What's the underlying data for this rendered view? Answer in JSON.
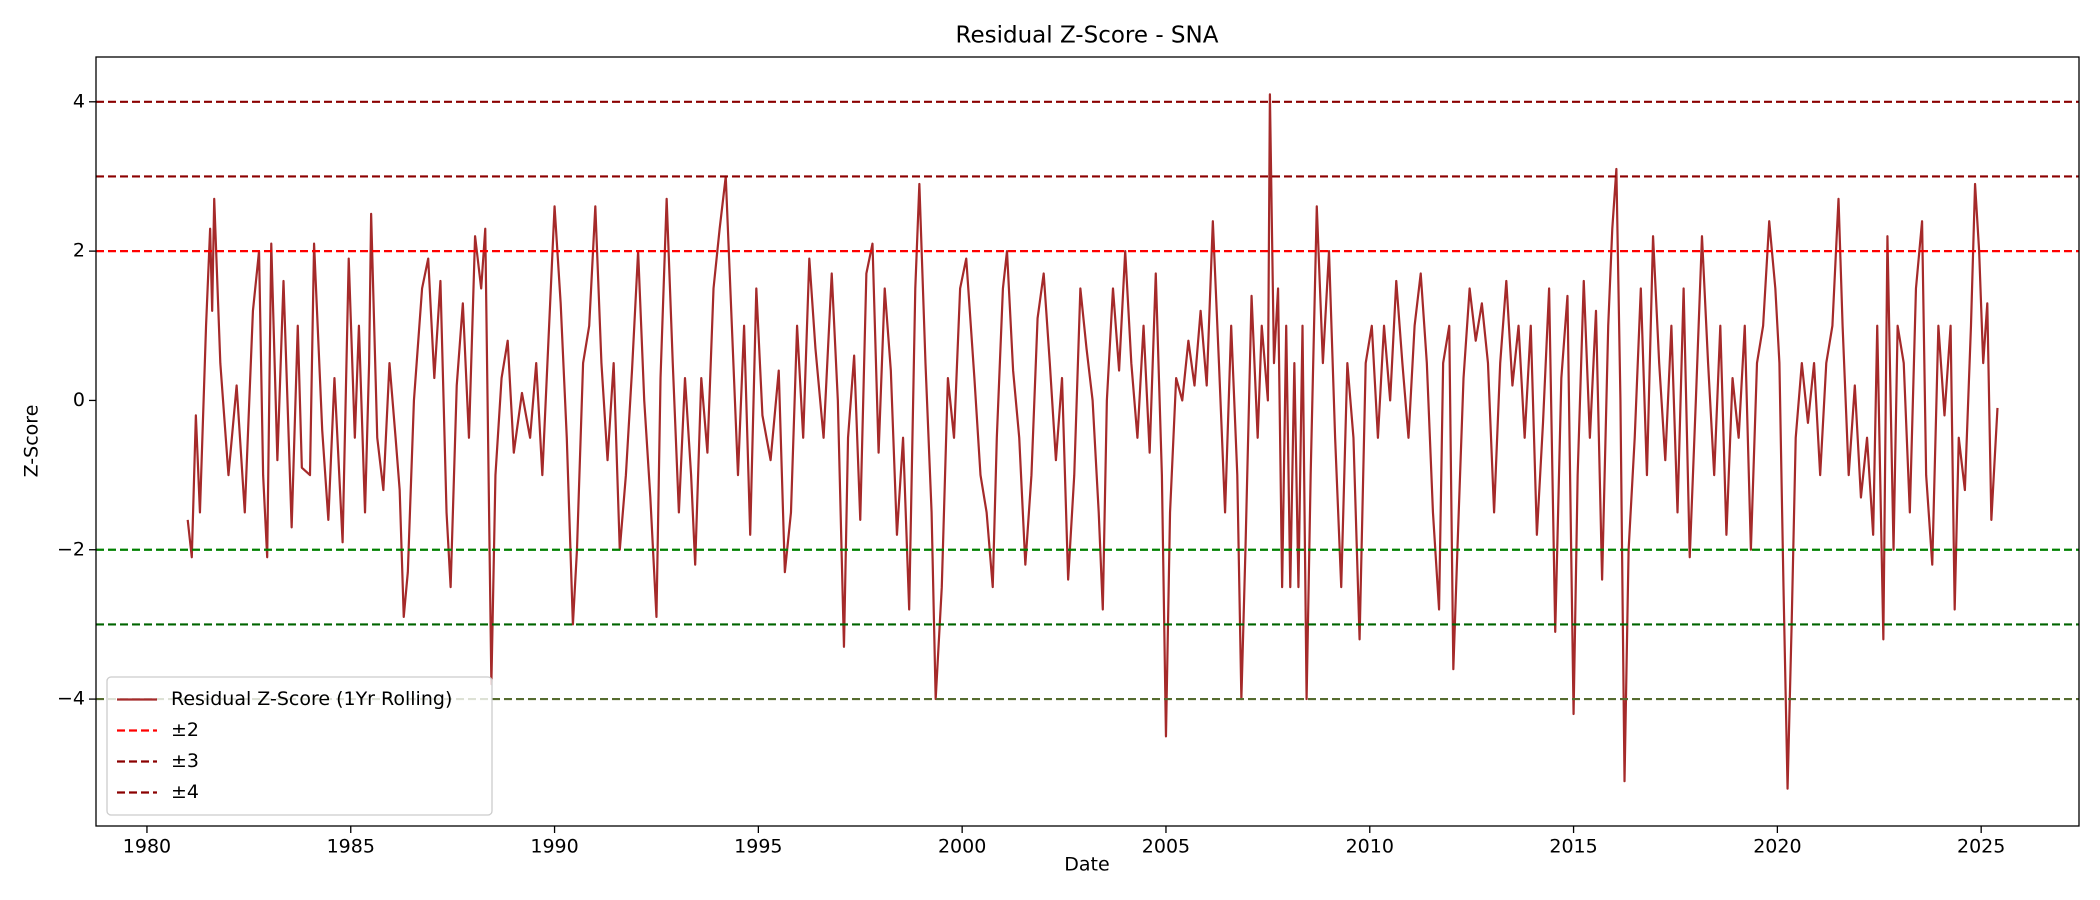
{
  "chart_data": {
    "type": "line",
    "title": "Residual Z-Score - SNA",
    "xlabel": "Date",
    "ylabel": "Z-Score",
    "xlim": [
      1978.75,
      2027.4
    ],
    "xticks": [
      1980,
      1985,
      1990,
      1995,
      2000,
      2005,
      2010,
      2015,
      2020,
      2025
    ],
    "ylim": [
      -5.7,
      4.6
    ],
    "yticks": [
      {
        "value": -4,
        "label": "−4"
      },
      {
        "value": -2,
        "label": "−2"
      },
      0,
      2,
      4
    ],
    "legend": "lower left",
    "x": [
      1981.0,
      1981.1,
      1981.2,
      1981.3,
      1981.45,
      1981.55,
      1981.6,
      1981.65,
      1981.8,
      1982.0,
      1982.2,
      1982.4,
      1982.6,
      1982.75,
      1982.85,
      1982.95,
      1983.05,
      1983.2,
      1983.35,
      1983.55,
      1983.7,
      1983.8,
      1984.0,
      1984.1,
      1984.3,
      1984.45,
      1984.6,
      1984.8,
      1984.95,
      1985.1,
      1985.2,
      1985.35,
      1985.45,
      1985.5,
      1985.65,
      1985.8,
      1985.95,
      1986.1,
      1986.2,
      1986.3,
      1986.4,
      1986.55,
      1986.75,
      1986.9,
      1987.05,
      1987.2,
      1987.35,
      1987.45,
      1987.6,
      1987.75,
      1987.9,
      1988.05,
      1988.2,
      1988.3,
      1988.45,
      1988.55,
      1988.7,
      1988.85,
      1989.0,
      1989.2,
      1989.4,
      1989.55,
      1989.7,
      1989.85,
      1990.0,
      1990.15,
      1990.3,
      1990.45,
      1990.55,
      1990.7,
      1990.85,
      1991.0,
      1991.15,
      1991.3,
      1991.45,
      1991.6,
      1991.75,
      1991.9,
      1992.05,
      1992.2,
      1992.35,
      1992.5,
      1992.6,
      1992.75,
      1992.9,
      1993.05,
      1993.2,
      1993.35,
      1993.45,
      1993.6,
      1993.75,
      1993.9,
      1994.05,
      1994.2,
      1994.35,
      1994.5,
      1994.65,
      1994.8,
      1994.95,
      1995.1,
      1995.3,
      1995.5,
      1995.65,
      1995.8,
      1995.95,
      1996.1,
      1996.25,
      1996.4,
      1996.6,
      1996.8,
      1996.95,
      1997.1,
      1997.2,
      1997.35,
      1997.5,
      1997.65,
      1997.8,
      1997.95,
      1998.1,
      1998.25,
      1998.4,
      1998.55,
      1998.7,
      1998.85,
      1998.95,
      1999.1,
      1999.25,
      1999.35,
      1999.5,
      1999.65,
      1999.8,
      1999.95,
      2000.1,
      2000.3,
      2000.45,
      2000.6,
      2000.75,
      2000.85,
      2001.0,
      2001.1,
      2001.25,
      2001.4,
      2001.55,
      2001.7,
      2001.85,
      2002.0,
      2002.15,
      2002.3,
      2002.45,
      2002.6,
      2002.75,
      2002.9,
      2003.05,
      2003.2,
      2003.35,
      2003.45,
      2003.55,
      2003.7,
      2003.85,
      2004.0,
      2004.15,
      2004.3,
      2004.45,
      2004.6,
      2004.75,
      2004.9,
      2005.0,
      2005.1,
      2005.25,
      2005.4,
      2005.55,
      2005.7,
      2005.85,
      2006.0,
      2006.15,
      2006.3,
      2006.45,
      2006.6,
      2006.75,
      2006.85,
      2006.95,
      2007.1,
      2007.25,
      2007.35,
      2007.5,
      2007.55,
      2007.65,
      2007.75,
      2007.85,
      2007.95,
      2008.05,
      2008.15,
      2008.25,
      2008.35,
      2008.45,
      2008.55,
      2008.7,
      2008.85,
      2009.0,
      2009.15,
      2009.3,
      2009.45,
      2009.6,
      2009.75,
      2009.9,
      2010.05,
      2010.2,
      2010.35,
      2010.5,
      2010.65,
      2010.8,
      2010.95,
      2011.1,
      2011.25,
      2011.4,
      2011.55,
      2011.7,
      2011.8,
      2011.95,
      2012.05,
      2012.15,
      2012.3,
      2012.45,
      2012.6,
      2012.75,
      2012.9,
      2013.05,
      2013.2,
      2013.35,
      2013.5,
      2013.65,
      2013.8,
      2013.95,
      2014.1,
      2014.25,
      2014.4,
      2014.55,
      2014.7,
      2014.85,
      2015.0,
      2015.1,
      2015.25,
      2015.4,
      2015.55,
      2015.7,
      2015.85,
      2015.95,
      2016.05,
      2016.15,
      2016.25,
      2016.35,
      2016.5,
      2016.65,
      2016.8,
      2016.95,
      2017.1,
      2017.25,
      2017.4,
      2017.55,
      2017.7,
      2017.85,
      2018.0,
      2018.15,
      2018.3,
      2018.45,
      2018.6,
      2018.75,
      2018.9,
      2019.05,
      2019.2,
      2019.35,
      2019.5,
      2019.65,
      2019.8,
      2019.95,
      2020.05,
      2020.15,
      2020.25,
      2020.35,
      2020.45,
      2020.6,
      2020.75,
      2020.9,
      2021.05,
      2021.2,
      2021.35,
      2021.5,
      2021.6,
      2021.75,
      2021.9,
      2022.05,
      2022.2,
      2022.35,
      2022.45,
      2022.6,
      2022.7,
      2022.85,
      2022.95,
      2023.1,
      2023.25,
      2023.4,
      2023.55,
      2023.65,
      2023.8,
      2023.95,
      2024.1,
      2024.25,
      2024.35,
      2024.45,
      2024.6,
      2024.75,
      2024.85,
      2024.95,
      2025.05,
      2025.15,
      2025.25,
      2025.4
    ],
    "series": [
      {
        "name": "Residual Z-Score (1Yr Rolling)",
        "color": "#a52a2a",
        "values": [
          -1.6,
          -2.1,
          -0.2,
          -1.5,
          1.0,
          2.3,
          1.2,
          2.7,
          0.5,
          -1.0,
          0.2,
          -1.5,
          1.2,
          2.0,
          -1.0,
          -2.1,
          2.1,
          -0.8,
          1.6,
          -1.7,
          1.0,
          -0.9,
          -1.0,
          2.1,
          -0.4,
          -1.6,
          0.3,
          -1.9,
          1.9,
          -0.5,
          1.0,
          -1.5,
          0.5,
          2.5,
          -0.5,
          -1.2,
          0.5,
          -0.5,
          -1.2,
          -2.9,
          -2.3,
          0.0,
          1.5,
          1.9,
          0.3,
          1.6,
          -1.5,
          -2.5,
          0.2,
          1.3,
          -0.5,
          2.2,
          1.5,
          2.3,
          -3.8,
          -1.0,
          0.3,
          0.8,
          -0.7,
          0.1,
          -0.5,
          0.5,
          -1.0,
          0.8,
          2.6,
          1.3,
          -0.5,
          -3.0,
          -2.0,
          0.5,
          1.0,
          2.6,
          0.5,
          -0.8,
          0.5,
          -2.0,
          -1.0,
          0.4,
          2.0,
          0.0,
          -1.3,
          -2.9,
          0.3,
          2.7,
          0.5,
          -1.5,
          0.3,
          -1.0,
          -2.2,
          0.3,
          -0.7,
          1.5,
          2.3,
          3.0,
          1.0,
          -1.0,
          1.0,
          -1.8,
          1.5,
          -0.2,
          -0.8,
          0.4,
          -2.3,
          -1.5,
          1.0,
          -0.5,
          1.9,
          0.7,
          -0.5,
          1.7,
          0.0,
          -3.3,
          -0.5,
          0.6,
          -1.6,
          1.7,
          2.1,
          -0.7,
          1.5,
          0.4,
          -1.8,
          -0.5,
          -2.8,
          1.5,
          2.9,
          0.5,
          -1.5,
          -4.0,
          -2.5,
          0.3,
          -0.5,
          1.5,
          1.9,
          0.3,
          -1.0,
          -1.5,
          -2.5,
          -0.5,
          1.5,
          2.0,
          0.4,
          -0.5,
          -2.2,
          -1.0,
          1.1,
          1.7,
          0.5,
          -0.8,
          0.3,
          -2.4,
          -1.0,
          1.5,
          0.7,
          0.0,
          -1.5,
          -2.8,
          0.0,
          1.5,
          0.4,
          2.0,
          0.5,
          -0.5,
          1.0,
          -0.7,
          1.7,
          -1.0,
          -4.5,
          -1.5,
          0.3,
          0.0,
          0.8,
          0.2,
          1.2,
          0.2,
          2.4,
          0.5,
          -1.5,
          1.0,
          -1.0,
          -4.0,
          -2.0,
          1.4,
          -0.5,
          1.0,
          0.0,
          4.1,
          0.5,
          1.5,
          -2.5,
          1.0,
          -2.5,
          0.5,
          -2.5,
          1.0,
          -4.0,
          -1.0,
          2.6,
          0.5,
          2.0,
          -0.5,
          -2.5,
          0.5,
          -0.5,
          -3.2,
          0.5,
          1.0,
          -0.5,
          1.0,
          0.0,
          1.6,
          0.5,
          -0.5,
          1.0,
          1.7,
          0.5,
          -1.5,
          -2.8,
          0.5,
          1.0,
          -3.6,
          -2.0,
          0.3,
          1.5,
          0.8,
          1.3,
          0.5,
          -1.5,
          0.5,
          1.6,
          0.2,
          1.0,
          -0.5,
          1.0,
          -1.8,
          -0.3,
          1.5,
          -3.1,
          0.3,
          1.4,
          -4.2,
          -1.0,
          1.6,
          -0.5,
          1.2,
          -2.4,
          1.0,
          2.3,
          3.1,
          0.0,
          -5.1,
          -2.0,
          -0.5,
          1.5,
          -1.0,
          2.2,
          0.5,
          -0.8,
          1.0,
          -1.5,
          1.5,
          -2.1,
          0.0,
          2.2,
          0.5,
          -1.0,
          1.0,
          -1.8,
          0.3,
          -0.5,
          1.0,
          -2.0,
          0.5,
          1.0,
          2.4,
          1.5,
          0.5,
          -2.5,
          -5.2,
          -3.0,
          -0.5,
          0.5,
          -0.3,
          0.5,
          -1.0,
          0.5,
          1.0,
          2.7,
          1.0,
          -1.0,
          0.2,
          -1.3,
          -0.5,
          -1.8,
          1.0,
          -3.2,
          2.2,
          -2.0,
          1.0,
          0.5,
          -1.5,
          1.5,
          2.4,
          -1.0,
          -2.2,
          1.0,
          -0.2,
          1.0,
          -2.8,
          -0.5,
          -1.2,
          1.0,
          2.9,
          2.0,
          0.5,
          1.3,
          -1.6,
          -0.1
        ]
      }
    ],
    "reference_lines": [
      {
        "name": "±2",
        "values": [
          2,
          -2
        ],
        "colors": [
          "#ff0000",
          "#008000"
        ]
      },
      {
        "name": "±3",
        "values": [
          3,
          -3
        ],
        "colors": [
          "#8b0000",
          "#006400"
        ]
      },
      {
        "name": "±4",
        "values": [
          4,
          -4
        ],
        "colors": [
          "#8b0000",
          "#556b2f"
        ]
      }
    ]
  }
}
